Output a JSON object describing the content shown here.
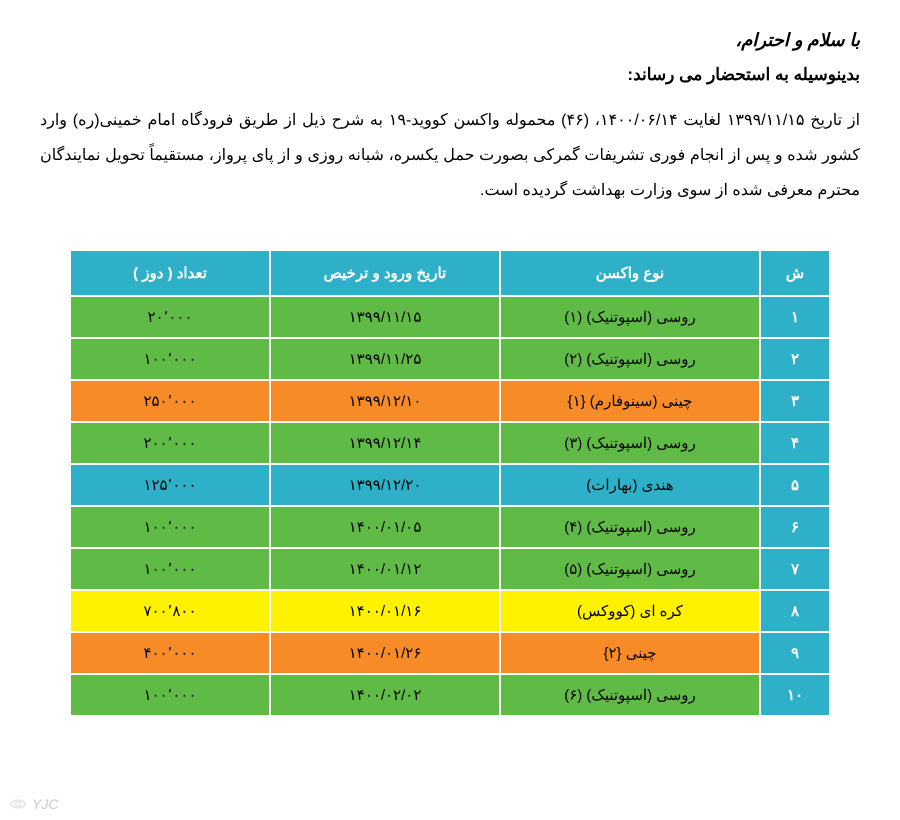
{
  "header": {
    "greeting": "با سلام و احترام،",
    "subheading": "بدینوسیله به استحضار می رساند:",
    "paragraph": "از تاریخ ۱۳۹۹/۱۱/۱۵ لغایت ۱۴۰۰/۰۶/۱۴، (۴۶) محموله واکسن کووید-۱۹ به شرح ذیل از طریق فرودگاه امام خمینی(ره) وارد کشور شده و پس از انجام فوری تشریفات گمرکی بصورت حمل یکسره، شبانه روزی و از پای پرواز، مستقیماً تحویل نمایندگان محترم معرفی شده از سوی وزارت بهداشت گردیده است."
  },
  "table": {
    "columns": {
      "index": "ش",
      "type": "نوع واکسن",
      "date": "تاریخ ورود و ترخیص",
      "qty": "تعداد ( دوز )"
    },
    "colors": {
      "header_bg": "#2fb0c9",
      "green": "#5fbb46",
      "orange": "#f68b28",
      "blue": "#2fb0c9",
      "yellow": "#fef200",
      "white_border": "#ffffff",
      "text_dark": "#000000",
      "text_light": "#ffffff"
    },
    "rows": [
      {
        "idx": "۱",
        "type": "روسی (اسپوتنیک) (۱)",
        "date": "۱۳۹۹/۱۱/۱۵",
        "qty": "۲۰٬۰۰۰",
        "bg": "#5fbb46"
      },
      {
        "idx": "۲",
        "type": "روسی (اسپوتنیک) (۲)",
        "date": "۱۳۹۹/۱۱/۲۵",
        "qty": "۱۰۰٬۰۰۰",
        "bg": "#5fbb46"
      },
      {
        "idx": "۳",
        "type": "چینی (سینوفارم) {۱}",
        "date": "۱۳۹۹/۱۲/۱۰",
        "qty": "۲۵۰٬۰۰۰",
        "bg": "#f68b28"
      },
      {
        "idx": "۴",
        "type": "روسی (اسپوتنیک) (۳)",
        "date": "۱۳۹۹/۱۲/۱۴",
        "qty": "۲۰۰٬۰۰۰",
        "bg": "#5fbb46"
      },
      {
        "idx": "۵",
        "type": "هندی (بهارات)",
        "date": "۱۳۹۹/۱۲/۲۰",
        "qty": "۱۲۵٬۰۰۰",
        "bg": "#2fb0c9"
      },
      {
        "idx": "۶",
        "type": "روسی (اسپوتنیک) (۴)",
        "date": "۱۴۰۰/۰۱/۰۵",
        "qty": "۱۰۰٬۰۰۰",
        "bg": "#5fbb46"
      },
      {
        "idx": "۷",
        "type": "روسی (اسپوتنیک) (۵)",
        "date": "۱۴۰۰/۰۱/۱۲",
        "qty": "۱۰۰٬۰۰۰",
        "bg": "#5fbb46"
      },
      {
        "idx": "۸",
        "type": "کره ای (کووکس)",
        "date": "۱۴۰۰/۰۱/۱۶",
        "qty": "۷۰۰٬۸۰۰",
        "bg": "#fef200"
      },
      {
        "idx": "۹",
        "type": "چینی {۲}",
        "date": "۱۴۰۰/۰۱/۲۶",
        "qty": "۴۰۰٬۰۰۰",
        "bg": "#f68b28"
      },
      {
        "idx": "۱۰",
        "type": "روسی (اسپوتنیک) (۶)",
        "date": "۱۴۰۰/۰۲/۰۲",
        "qty": "۱۰۰٬۰۰۰",
        "bg": "#5fbb46"
      }
    ]
  },
  "watermark": "YJC"
}
